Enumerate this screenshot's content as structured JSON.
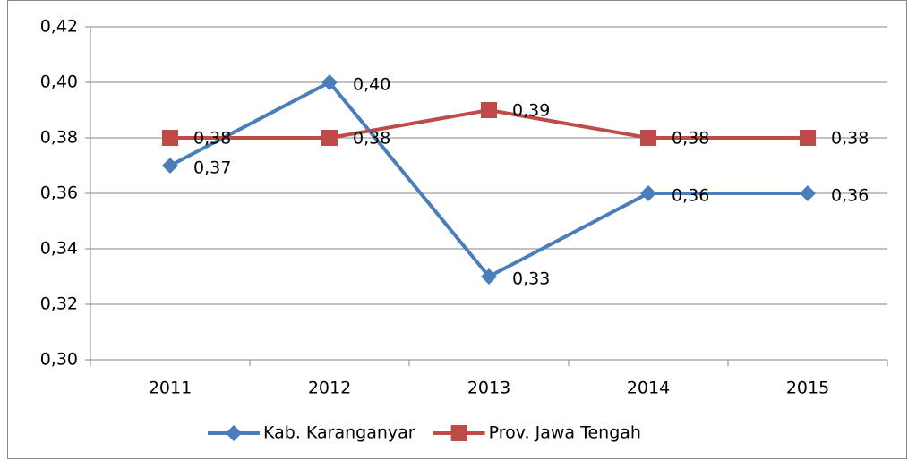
{
  "chart_data": {
    "type": "line",
    "categories": [
      "2011",
      "2012",
      "2013",
      "2014",
      "2015"
    ],
    "series": [
      {
        "name": "Kab. Karanganyar",
        "color": "#4a7ebb",
        "marker": "diamond",
        "values": [
          0.37,
          0.4,
          0.33,
          0.36,
          0.36
        ],
        "value_labels": [
          "0,37",
          "0,40",
          "0,33",
          "0,36",
          "0,36"
        ]
      },
      {
        "name": "Prov. Jawa Tengah",
        "color": "#be4b48",
        "marker": "square",
        "values": [
          0.38,
          0.38,
          0.39,
          0.38,
          0.38
        ],
        "value_labels": [
          "0,38",
          "0,38",
          "0,39",
          "0,38",
          "0,38"
        ]
      }
    ],
    "ylim": [
      0.3,
      0.42
    ],
    "yticks": [
      {
        "value": 0.3,
        "label": "0,30"
      },
      {
        "value": 0.32,
        "label": "0,32"
      },
      {
        "value": 0.34,
        "label": "0,34"
      },
      {
        "value": 0.36,
        "label": "0,36"
      },
      {
        "value": 0.38,
        "label": "0,38"
      },
      {
        "value": 0.4,
        "label": "0,40"
      },
      {
        "value": 0.42,
        "label": "0,42"
      }
    ],
    "grid": true,
    "legend": "bottom"
  }
}
